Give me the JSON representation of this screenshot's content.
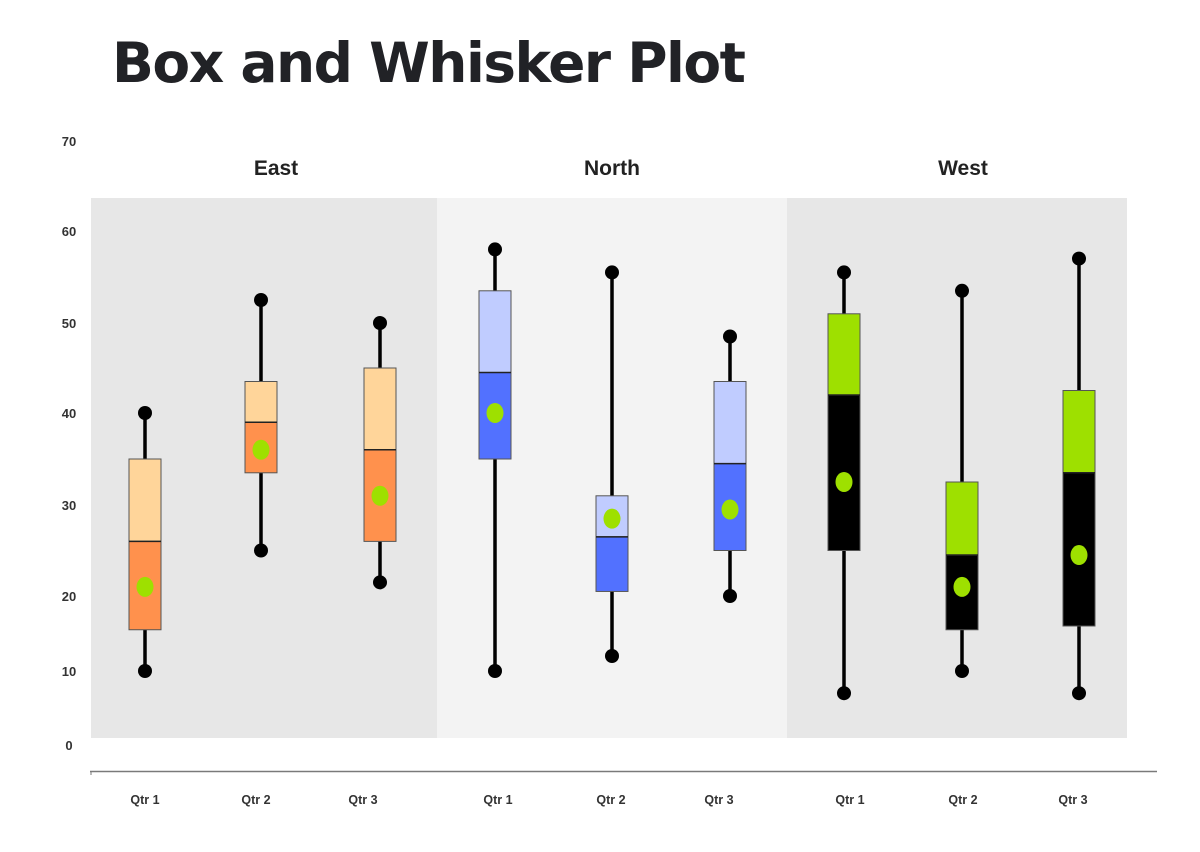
{
  "title": "Box and Whisker Plot",
  "colors": {
    "panel_east": "#e7e7e7",
    "panel_north": "#f3f3f3",
    "panel_west": "#e7e7e7",
    "axis_line": "#7a7a7a",
    "whisker": "#000000",
    "box_border": "#555555",
    "mean_marker": "#9ee000"
  },
  "chart_data": {
    "type": "box",
    "title": "Box and Whisker Plot",
    "xlabel": "",
    "ylabel": "",
    "ylim": [
      0,
      70
    ],
    "yticks": [
      0,
      10,
      20,
      30,
      40,
      50,
      60,
      70
    ],
    "grid": false,
    "legend": null,
    "groups": [
      {
        "name": "East",
        "upper_box_color": "#ffd59a",
        "lower_box_color": "#ff914d",
        "series": [
          {
            "category": "Qtr 1",
            "min": 10,
            "q1": 15.5,
            "median": 26,
            "q3": 35,
            "max": 40,
            "mean": 21
          },
          {
            "category": "Qtr 2",
            "min": 25,
            "q1": 33.5,
            "median": 39,
            "q3": 43.5,
            "max": 52.5,
            "mean": 36
          },
          {
            "category": "Qtr 3",
            "min": 21.5,
            "q1": 26,
            "median": 36,
            "q3": 45,
            "max": 50,
            "mean": 31
          }
        ]
      },
      {
        "name": "North",
        "upper_box_color": "#c0ccff",
        "lower_box_color": "#5271ff",
        "series": [
          {
            "category": "Qtr 1",
            "min": 10,
            "q1": 35,
            "median": 44.5,
            "q3": 53.5,
            "max": 58,
            "mean": 40
          },
          {
            "category": "Qtr 2",
            "min": 12,
            "q1": 20.5,
            "median": 26.5,
            "q3": 31,
            "max": 55.5,
            "mean": 28.5
          },
          {
            "category": "Qtr 3",
            "min": 20,
            "q1": 25,
            "median": 34.5,
            "q3": 43.5,
            "max": 48.5,
            "mean": 29.5
          }
        ]
      },
      {
        "name": "West",
        "upper_box_color": "#9ee000",
        "lower_box_color": "#000000",
        "series": [
          {
            "category": "Qtr 1",
            "min": 7,
            "q1": 25,
            "median": 42,
            "q3": 51,
            "max": 55.5,
            "mean": 32.5
          },
          {
            "category": "Qtr 2",
            "min": 10,
            "q1": 15.5,
            "median": 24.5,
            "q3": 32.5,
            "max": 53.5,
            "mean": 21
          },
          {
            "category": "Qtr 3",
            "min": 7,
            "q1": 16,
            "median": 33.5,
            "q3": 42.5,
            "max": 57,
            "mean": 24.5
          }
        ]
      }
    ]
  },
  "yaxis": {
    "ticks": [
      "70",
      "60",
      "50",
      "40",
      "30",
      "20",
      "10",
      "0"
    ]
  },
  "xaxis": {
    "labels": [
      "Qtr 1",
      "Qtr 2",
      "Qtr 3",
      "Qtr 1",
      "Qtr 2",
      "Qtr 3",
      "Qtr 1",
      "Qtr 2",
      "Qtr 3"
    ]
  },
  "group_labels": [
    "East",
    "North",
    "West"
  ]
}
